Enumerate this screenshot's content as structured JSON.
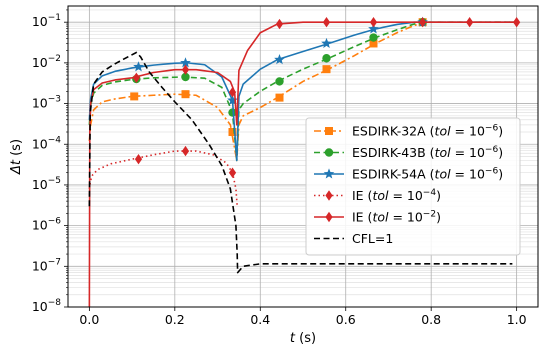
{
  "chart_data": {
    "type": "line",
    "xlabel": "t (s)",
    "ylabel": "Δt (s)",
    "x_scale": "linear",
    "y_scale": "log",
    "xlim": [
      -0.05,
      1.05
    ],
    "ylim": [
      1e-08,
      0.25
    ],
    "x_ticks": [
      0.0,
      0.2,
      0.4,
      0.6,
      0.8,
      1.0
    ],
    "x_tick_labels": [
      "0.0",
      "0.2",
      "0.4",
      "0.6",
      "0.8",
      "1.0"
    ],
    "y_ticks": [
      1e-08,
      1e-07,
      1e-06,
      1e-05,
      0.0001,
      0.001,
      0.01,
      0.1
    ],
    "y_tick_labels": [
      {
        "base": "10",
        "exp": "−8"
      },
      {
        "base": "10",
        "exp": "−7"
      },
      {
        "base": "10",
        "exp": "−6"
      },
      {
        "base": "10",
        "exp": "−5"
      },
      {
        "base": "10",
        "exp": "−4"
      },
      {
        "base": "10",
        "exp": "−3"
      },
      {
        "base": "10",
        "exp": "−2"
      },
      {
        "base": "10",
        "exp": "−1"
      }
    ],
    "grid": true,
    "legend_position": "center-right",
    "series": [
      {
        "name": "ESDIRK-32A (tol = 10⁻⁶)",
        "legend": {
          "prefix": "ESDIRK-32A (",
          "var": "tol",
          "mid": " = 10",
          "exp": "−6",
          "suffix": ")"
        },
        "color": "#ff7f0e",
        "dash": "dashdot",
        "marker": "square",
        "x": [
          0.0,
          0.003,
          0.01,
          0.03,
          0.06,
          0.1,
          0.15,
          0.2,
          0.25,
          0.3,
          0.33,
          0.345,
          0.35,
          0.36,
          0.4,
          0.44,
          0.5,
          0.56,
          0.62,
          0.67,
          0.72,
          0.75,
          0.77,
          0.78,
          0.85,
          1.0
        ],
        "y": [
          0.00012,
          0.0003,
          0.0007,
          0.0011,
          0.0013,
          0.0015,
          0.0016,
          0.0017,
          0.0016,
          0.0008,
          0.0003,
          4e-05,
          0.0003,
          0.0005,
          0.0008,
          0.0014,
          0.0035,
          0.007,
          0.015,
          0.03,
          0.055,
          0.075,
          0.09,
          0.1,
          0.1,
          0.1
        ],
        "marker_x": [
          0.105,
          0.225,
          0.335,
          0.445,
          0.555,
          0.665,
          0.78
        ],
        "marker_y": [
          0.0015,
          0.0017,
          0.0002,
          0.0014,
          0.007,
          0.03,
          0.1
        ]
      },
      {
        "name": "ESDIRK-43B (tol = 10⁻⁶)",
        "legend": {
          "prefix": "ESDIRK-43B (",
          "var": "tol",
          "mid": " = 10",
          "exp": "−6",
          "suffix": ")"
        },
        "color": "#2ca02c",
        "dash": "dashed",
        "marker": "circle",
        "x": [
          0.0,
          0.003,
          0.01,
          0.03,
          0.06,
          0.1,
          0.15,
          0.22,
          0.27,
          0.31,
          0.335,
          0.345,
          0.35,
          0.36,
          0.4,
          0.44,
          0.5,
          0.56,
          0.62,
          0.67,
          0.72,
          0.76,
          0.78,
          0.85,
          1.0
        ],
        "y": [
          0.0003,
          0.0009,
          0.0018,
          0.0028,
          0.0034,
          0.0039,
          0.0043,
          0.0045,
          0.0042,
          0.0025,
          0.0006,
          4e-05,
          0.0007,
          0.001,
          0.002,
          0.0035,
          0.007,
          0.013,
          0.025,
          0.042,
          0.065,
          0.09,
          0.1,
          0.1,
          0.1
        ],
        "marker_x": [
          0.11,
          0.225,
          0.335,
          0.445,
          0.555,
          0.665,
          0.78
        ],
        "marker_y": [
          0.004,
          0.0045,
          0.0006,
          0.0035,
          0.013,
          0.042,
          0.1
        ]
      },
      {
        "name": "ESDIRK-54A (tol = 10⁻⁶)",
        "legend": {
          "prefix": "ESDIRK-54A (",
          "var": "tol",
          "mid": " = 10",
          "exp": "−6",
          "suffix": ")"
        },
        "color": "#1f77b4",
        "dash": "solid",
        "marker": "star",
        "x": [
          0.0,
          0.003,
          0.01,
          0.03,
          0.06,
          0.1,
          0.15,
          0.2,
          0.23,
          0.27,
          0.31,
          0.335,
          0.345,
          0.35,
          0.36,
          0.4,
          0.44,
          0.5,
          0.56,
          0.62,
          0.67,
          0.72,
          0.76,
          0.78,
          0.85,
          1.0
        ],
        "y": [
          0.0004,
          0.0013,
          0.003,
          0.0048,
          0.0062,
          0.0075,
          0.0088,
          0.0098,
          0.01,
          0.009,
          0.0045,
          0.0012,
          4e-05,
          0.0015,
          0.003,
          0.007,
          0.012,
          0.019,
          0.03,
          0.048,
          0.068,
          0.088,
          0.1,
          0.1,
          0.1,
          0.1
        ],
        "marker_x": [
          0.115,
          0.225,
          0.335,
          0.445,
          0.555,
          0.665,
          0.78
        ],
        "marker_y": [
          0.008,
          0.01,
          0.0012,
          0.012,
          0.03,
          0.068,
          0.1
        ]
      },
      {
        "name": "IE (tol = 10⁻⁴)",
        "legend": {
          "prefix": "IE (",
          "var": "tol",
          "mid": " = 10",
          "exp": "−4",
          "suffix": ")"
        },
        "color": "#d62728",
        "dash": "dotted",
        "marker": "diamond",
        "x": [
          0.0,
          0.003,
          0.008,
          0.02,
          0.05,
          0.1,
          0.15,
          0.2,
          0.25,
          0.29,
          0.32,
          0.335,
          0.343,
          0.346
        ],
        "y": [
          8e-06,
          1.3e-05,
          1.8e-05,
          2.4e-05,
          3.3e-05,
          4.3e-05,
          5.5e-05,
          6.8e-05,
          6.8e-05,
          5.5e-05,
          3.5e-05,
          2e-05,
          8e-06,
          3e-06
        ],
        "marker_x": [
          0.115,
          0.225,
          0.335
        ],
        "marker_y": [
          4.3e-05,
          6.8e-05,
          2e-05
        ]
      },
      {
        "name": "IE (tol = 10⁻²)",
        "legend": {
          "prefix": "IE (",
          "var": "tol",
          "mid": " = 10",
          "exp": "−2",
          "suffix": ")"
        },
        "color": "#d62728",
        "dash": "solid",
        "marker": "diamond",
        "x": [
          0.0,
          0.001,
          0.003,
          0.01,
          0.03,
          0.06,
          0.1,
          0.15,
          0.2,
          0.25,
          0.3,
          0.33,
          0.34,
          0.345,
          0.35,
          0.37,
          0.4,
          0.44,
          0.5,
          0.56,
          0.67,
          0.78,
          0.89,
          1.0
        ],
        "y": [
          1e-08,
          0.0002,
          0.001,
          0.0022,
          0.0032,
          0.0038,
          0.0043,
          0.0058,
          0.0068,
          0.0068,
          0.0058,
          0.0035,
          0.0019,
          0.0003,
          0.0065,
          0.02,
          0.055,
          0.09,
          0.1,
          0.1,
          0.1,
          0.1,
          0.1,
          0.1
        ],
        "marker_x": [
          0.11,
          0.225,
          0.335,
          0.445,
          0.555,
          0.665,
          0.78,
          0.89,
          1.0
        ],
        "marker_y": [
          0.0043,
          0.0068,
          0.0019,
          0.09,
          0.1,
          0.1,
          0.1,
          0.1,
          0.1
        ]
      },
      {
        "name": "CFL=1",
        "legend": {
          "prefix": "CFL=1",
          "var": "",
          "mid": "",
          "exp": "",
          "suffix": ""
        },
        "color": "#000000",
        "dash": "dashed",
        "marker": "none",
        "x": [
          0.0,
          0.002,
          0.01,
          0.03,
          0.06,
          0.09,
          0.11,
          0.12,
          0.14,
          0.17,
          0.2,
          0.24,
          0.28,
          0.31,
          0.33,
          0.343,
          0.346,
          0.347,
          0.36,
          0.4,
          0.5,
          0.7,
          0.9,
          0.99
        ],
        "y": [
          3e-06,
          0.0006,
          0.003,
          0.006,
          0.0095,
          0.014,
          0.018,
          0.014,
          0.006,
          0.0025,
          0.0011,
          0.0004,
          0.0001,
          3e-05,
          8e-06,
          1e-06,
          2e-07,
          7e-08,
          1e-07,
          1.15e-07,
          1.15e-07,
          1.15e-07,
          1.15e-07,
          1.15e-07
        ]
      }
    ]
  }
}
